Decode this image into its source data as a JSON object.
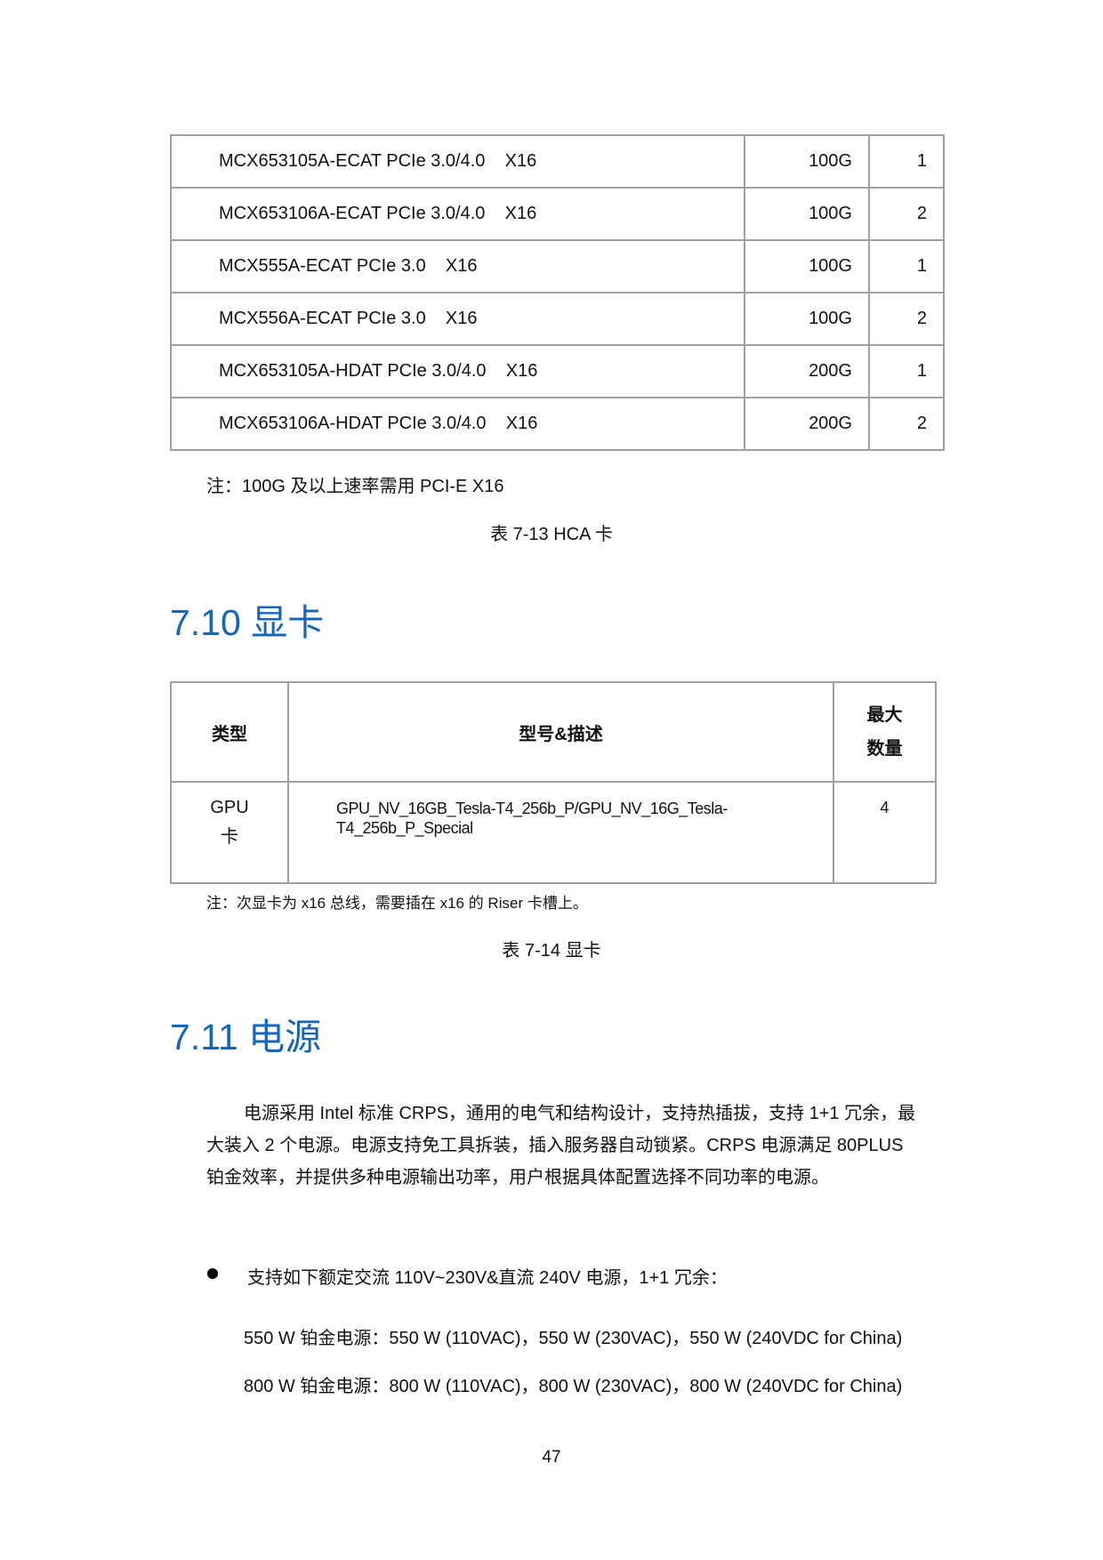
{
  "hca_table": {
    "rows": [
      {
        "model": "MCX653105A-ECAT PCIe 3.0/4.0    X16",
        "speed": "100G",
        "ports": "1"
      },
      {
        "model": "MCX653106A-ECAT PCIe 3.0/4.0    X16",
        "speed": "100G",
        "ports": "2"
      },
      {
        "model": "MCX555A-ECAT PCIe 3.0    X16",
        "speed": "100G",
        "ports": "1"
      },
      {
        "model": "MCX556A-ECAT PCIe 3.0    X16",
        "speed": "100G",
        "ports": "2"
      },
      {
        "model": "MCX653105A-HDAT PCIe 3.0/4.0    X16",
        "speed": "200G",
        "ports": "1"
      },
      {
        "model": "MCX653106A-HDAT PCIe 3.0/4.0    X16",
        "speed": "200G",
        "ports": "2"
      }
    ],
    "note": "注：100G 及以上速率需用 PCI-E X16",
    "caption": "表 7-13 HCA 卡"
  },
  "gpu_section": {
    "heading": "7.10 显卡",
    "headers": {
      "type": "类型",
      "model": "型号&描述",
      "max_line1": "最大",
      "max_line2": "数量"
    },
    "row": {
      "type_line1": "GPU",
      "type_line2": "卡",
      "model_line1": "GPU_NV_16GB_Tesla-T4_256b_P/GPU_NV_16G_Tesla-",
      "model_line2": "T4_256b_P_Special",
      "max": "4"
    },
    "note": "注：次显卡为 x16 总线，需要插在 x16 的 Riser 卡槽上。",
    "caption": "表 7-14  显卡"
  },
  "psu_section": {
    "heading": "7.11 电源",
    "para_lines": [
      "电源采用 Intel 标准 CRPS，通用的电气和结构设计，支持热插拔，支持 1+1 冗余，最",
      "大装入 2 个电源。电源支持免工具拆装，插入服务器自动锁紧。CRPS 电源满足 80PLUS",
      "铂金效率，并提供多种电源输出功率，用户根据具体配置选择不同功率的电源。"
    ],
    "bullet": "支持如下额定交流 110V~230V&直流 240V 电源，1+1 冗余：",
    "items": [
      "550 W 铂金电源：550 W (110VAC)，550 W (230VAC)，550 W (240VDC for China)",
      "800 W 铂金电源：800 W (110VAC)，800 W (230VAC)，800 W (240VDC for China)"
    ]
  },
  "page_number": "47",
  "colors": {
    "heading": "#1565b8",
    "table_border": "#a0a0a0"
  }
}
